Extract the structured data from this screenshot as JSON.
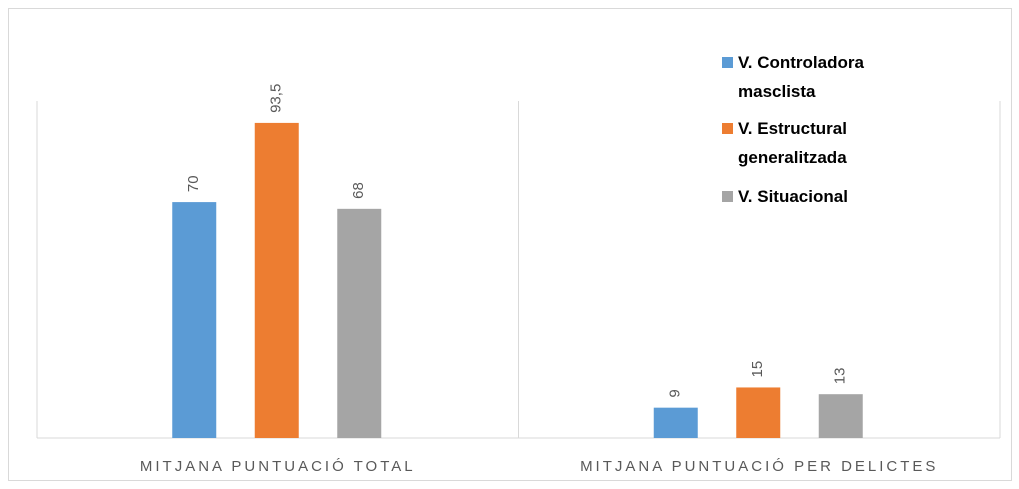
{
  "chart_data": {
    "type": "bar",
    "categories": [
      "MITJANA PUNTUACIÓ TOTAL",
      "MITJANA PUNTUACIÓ PER DELICTES"
    ],
    "series": [
      {
        "name": "V. Controladora masclista",
        "color": "#5b9bd5",
        "values": [
          70,
          9
        ],
        "value_labels": [
          "70",
          "9"
        ]
      },
      {
        "name": "V. Estructural generalitzada",
        "color": "#ed7d31",
        "values": [
          93.5,
          15
        ],
        "value_labels": [
          "93,5",
          "15"
        ]
      },
      {
        "name": "V. Situacional",
        "color": "#a5a5a5",
        "values": [
          68,
          13
        ],
        "value_labels": [
          "68",
          "13"
        ]
      }
    ],
    "ylim": [
      0,
      100
    ],
    "legend": "upper right"
  }
}
